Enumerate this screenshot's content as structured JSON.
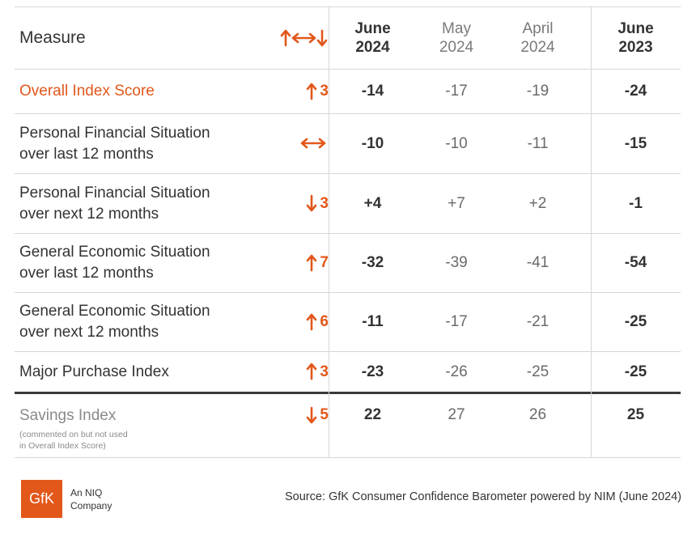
{
  "header": {
    "measure": "Measure",
    "change_icon": "up-left-right-down-arrows",
    "col1": [
      "June",
      "2024"
    ],
    "col2": [
      "May",
      "2024"
    ],
    "col3": [
      "April",
      "2024"
    ],
    "col4": [
      "June",
      "2023"
    ]
  },
  "rows": [
    {
      "measure": [
        "Overall Index Score"
      ],
      "dir": "up",
      "change": "3",
      "v1": "-14",
      "v2": "-17",
      "v3": "-19",
      "v4": "-24"
    },
    {
      "measure": [
        "Personal Financial Situation",
        "over last 12 months"
      ],
      "dir": "flat",
      "change": "",
      "v1": "-10",
      "v2": "-10",
      "v3": "-11",
      "v4": "-15"
    },
    {
      "measure": [
        "Personal Financial Situation",
        "over next 12 months"
      ],
      "dir": "down",
      "change": "3",
      "v1": "+4",
      "v2": "+7",
      "v3": "+2",
      "v4": "-1"
    },
    {
      "measure": [
        "General Economic Situation",
        "over last 12 months"
      ],
      "dir": "up",
      "change": "7",
      "v1": "-32",
      "v2": "-39",
      "v3": "-41",
      "v4": "-54"
    },
    {
      "measure": [
        "General Economic Situation",
        "over next 12 months"
      ],
      "dir": "up",
      "change": "6",
      "v1": "-11",
      "v2": "-17",
      "v3": "-21",
      "v4": "-25"
    },
    {
      "measure": [
        "Major Purchase Index"
      ],
      "dir": "up",
      "change": "3",
      "v1": "-23",
      "v2": "-26",
      "v3": "-25",
      "v4": "-25"
    }
  ],
  "savings": {
    "measure": "Savings Index",
    "note": [
      "(commented on but not used",
      "in Overall Index Score)"
    ],
    "dir": "down",
    "change": "5",
    "v1": "22",
    "v2": "27",
    "v3": "26",
    "v4": "25"
  },
  "footer": {
    "logo_text": "GfK",
    "company": [
      "An NIQ",
      "Company"
    ],
    "source": "Source: GfK Consumer Confidence Barometer powered by NIM (June 2024)"
  },
  "colors": {
    "accent": "#e2571a",
    "text": "#333333",
    "muted": "#6a6a6a"
  }
}
